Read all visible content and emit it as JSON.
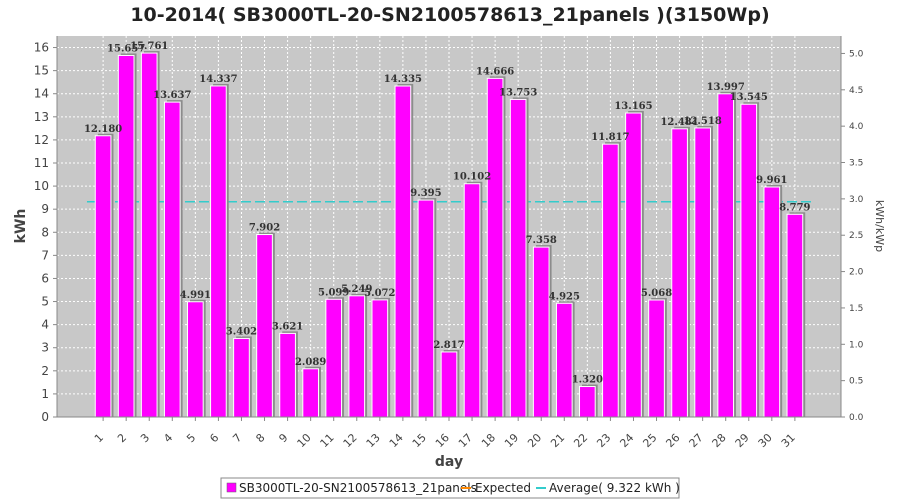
{
  "chart_data": {
    "type": "bar",
    "title": "10-2014( SB3000TL-20-SN2100578613_21panels )(3150Wp)",
    "xlabel": "day",
    "ylabel": "kWh",
    "ylabel_right": "kWh/kWp",
    "ylim": [
      0,
      16.5
    ],
    "ylim_right": [
      0,
      5.24
    ],
    "yticks": [
      0,
      1,
      2,
      3,
      4,
      5,
      6,
      7,
      8,
      9,
      10,
      11,
      12,
      13,
      14,
      15,
      16
    ],
    "yticks_right": [
      "0.0",
      "0.5",
      "1.0",
      "1.5",
      "2.0",
      "2.5",
      "3.0",
      "3.5",
      "4.0",
      "4.5",
      "5.0"
    ],
    "grid": true,
    "legend_position": "bottom",
    "categories": [
      "1",
      "2",
      "3",
      "4",
      "5",
      "6",
      "7",
      "8",
      "9",
      "10",
      "11",
      "12",
      "13",
      "14",
      "15",
      "16",
      "17",
      "18",
      "19",
      "20",
      "21",
      "22",
      "23",
      "24",
      "25",
      "26",
      "27",
      "28",
      "29",
      "30",
      "31"
    ],
    "series": [
      {
        "name": "SB3000TL-20-SN2100578613_21panels",
        "color": "#ff00ff",
        "values": [
          12.18,
          15.657,
          15.761,
          13.637,
          4.991,
          14.337,
          3.402,
          7.902,
          3.621,
          2.089,
          5.099,
          5.249,
          5.072,
          14.335,
          9.395,
          2.817,
          10.102,
          14.666,
          13.753,
          7.358,
          4.925,
          1.32,
          11.817,
          13.165,
          5.068,
          12.481,
          12.518,
          13.997,
          13.545,
          9.961,
          8.779
        ],
        "labels": [
          "12.180",
          "15.657",
          "15.761",
          "13.637",
          "4.991",
          "14.337",
          "3.402",
          "7.902",
          "3.621",
          "2.089",
          "5.099",
          "5.249",
          "5.072",
          "14.335",
          "9.395",
          "2.817",
          "10.102",
          "14.666",
          "13.753",
          "7.358",
          "4.925",
          "1.320",
          "11.817",
          "13.165",
          "5.068",
          "12.481",
          "12.518",
          "13.997",
          "13.545",
          "9.961",
          "8.779"
        ]
      }
    ],
    "average": {
      "name": "Average( 9.322 kWh )",
      "value": 9.322,
      "color": "#33cccc"
    },
    "expected": {
      "name": "Expected",
      "color": "#ff8800"
    },
    "colors": {
      "plot_bg": "#c8c8c8",
      "grid": "#ffffff",
      "bar": "#ff00ff",
      "bar_shadow": "#8c8c8c"
    }
  }
}
